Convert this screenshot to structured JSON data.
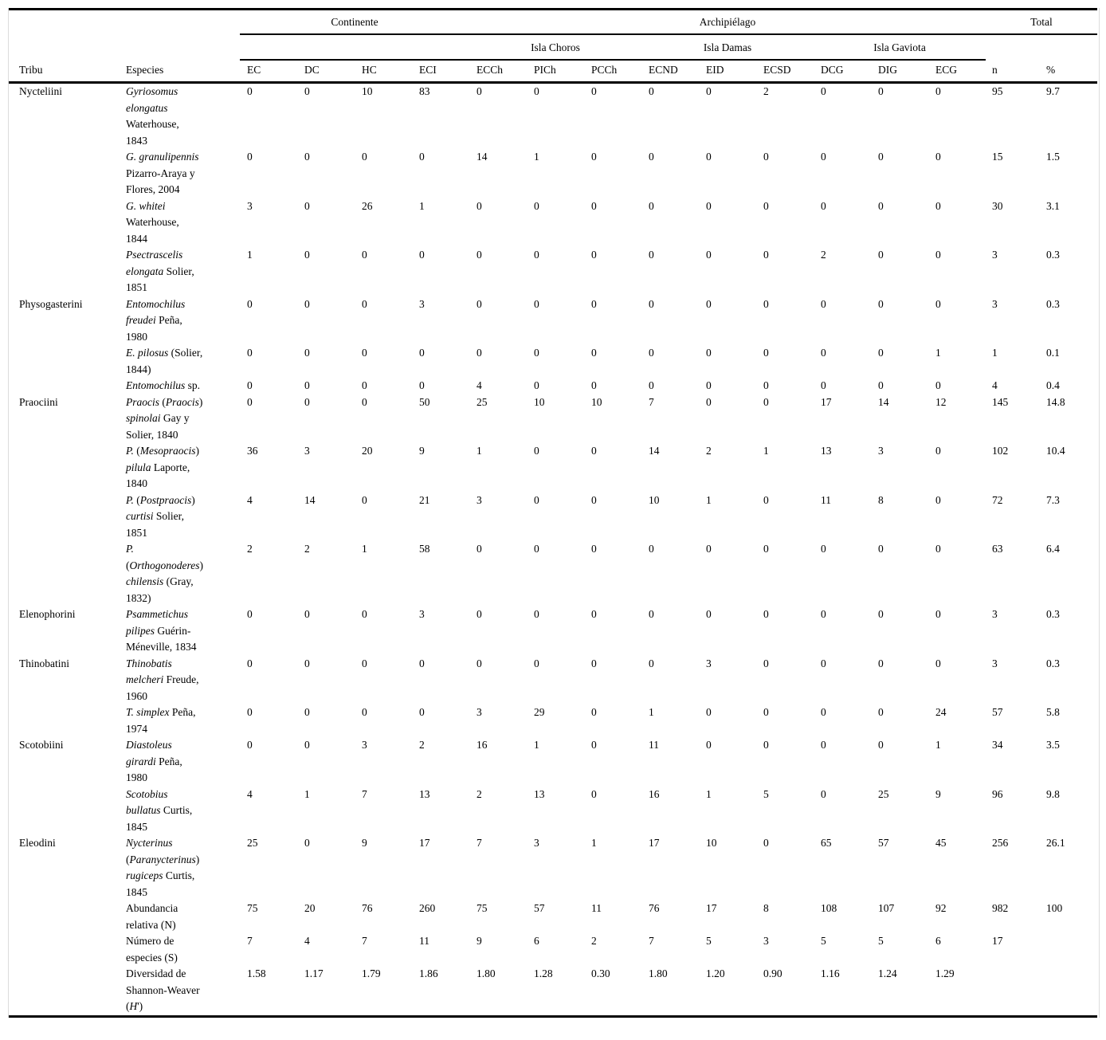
{
  "table": {
    "groups": {
      "continente": "Continente",
      "archipielago": "Archipiélago",
      "total": "Total"
    },
    "islands": [
      "Isla Choros",
      "Isla Damas",
      "Isla Gaviota"
    ],
    "col_headers": {
      "tribu": "Tribu",
      "especies": "Especies",
      "codes": [
        "EC",
        "DC",
        "HC",
        "ECI",
        "ECCh",
        "PICh",
        "PCCh",
        "ECND",
        "EID",
        "ECSD",
        "DCG",
        "DIG",
        "ECG",
        "n",
        "%"
      ]
    },
    "rows": [
      {
        "tribu": "Nycteliini",
        "species_lines": [
          [
            [
              "Gyriosomus",
              1
            ]
          ],
          [
            [
              "elongatus",
              1
            ]
          ],
          [
            [
              "Waterhouse,",
              0
            ]
          ],
          [
            [
              "1843",
              0
            ]
          ]
        ],
        "values": [
          "0",
          "0",
          "10",
          "83",
          "0",
          "0",
          "0",
          "0",
          "0",
          "2",
          "0",
          "0",
          "0",
          "95",
          "9.7"
        ]
      },
      {
        "tribu": "",
        "species_lines": [
          [
            [
              "G. granulipennis",
              1
            ]
          ],
          [
            [
              "Pizarro-Araya y",
              0
            ]
          ],
          [
            [
              "Flores, 2004",
              0
            ]
          ]
        ],
        "values": [
          "0",
          "0",
          "0",
          "0",
          "14",
          "1",
          "0",
          "0",
          "0",
          "0",
          "0",
          "0",
          "0",
          "15",
          "1.5"
        ]
      },
      {
        "tribu": "",
        "species_lines": [
          [
            [
              "G. whitei",
              1
            ]
          ],
          [
            [
              "Waterhouse,",
              0
            ]
          ],
          [
            [
              "1844",
              0
            ]
          ]
        ],
        "values": [
          "3",
          "0",
          "26",
          "1",
          "0",
          "0",
          "0",
          "0",
          "0",
          "0",
          "0",
          "0",
          "0",
          "30",
          "3.1"
        ]
      },
      {
        "tribu": "",
        "species_lines": [
          [
            [
              "Psectrascelis",
              1
            ]
          ],
          [
            [
              "elongata",
              1
            ],
            [
              " Solier,",
              0
            ]
          ],
          [
            [
              "1851",
              0
            ]
          ]
        ],
        "values": [
          "1",
          "0",
          "0",
          "0",
          "0",
          "0",
          "0",
          "0",
          "0",
          "0",
          "2",
          "0",
          "0",
          "3",
          "0.3"
        ]
      },
      {
        "tribu": "Physogasterini",
        "species_lines": [
          [
            [
              "Entomochilus",
              1
            ]
          ],
          [
            [
              "freudei",
              1
            ],
            [
              " Peña,",
              0
            ]
          ],
          [
            [
              "1980",
              0
            ]
          ]
        ],
        "values": [
          "0",
          "0",
          "0",
          "3",
          "0",
          "0",
          "0",
          "0",
          "0",
          "0",
          "0",
          "0",
          "0",
          "3",
          "0.3"
        ]
      },
      {
        "tribu": "",
        "species_lines": [
          [
            [
              "E. pilosus",
              1
            ],
            [
              " (Solier,",
              0
            ]
          ],
          [
            [
              "1844)",
              0
            ]
          ]
        ],
        "values": [
          "0",
          "0",
          "0",
          "0",
          "0",
          "0",
          "0",
          "0",
          "0",
          "0",
          "0",
          "0",
          "1",
          "1",
          "0.1"
        ]
      },
      {
        "tribu": "",
        "species_lines": [
          [
            [
              "Entomochilus",
              1
            ],
            [
              " sp.",
              0
            ]
          ]
        ],
        "values": [
          "0",
          "0",
          "0",
          "0",
          "4",
          "0",
          "0",
          "0",
          "0",
          "0",
          "0",
          "0",
          "0",
          "4",
          "0.4"
        ]
      },
      {
        "tribu": "Praociini",
        "species_lines": [
          [
            [
              "Praocis",
              1
            ],
            [
              " (",
              0
            ],
            [
              "Praocis",
              1
            ],
            [
              ")",
              0
            ]
          ],
          [
            [
              "spinolai",
              1
            ],
            [
              " Gay y",
              0
            ]
          ],
          [
            [
              "Solier, 1840",
              0
            ]
          ]
        ],
        "values": [
          "0",
          "0",
          "0",
          "50",
          "25",
          "10",
          "10",
          "7",
          "0",
          "0",
          "17",
          "14",
          "12",
          "145",
          "14.8"
        ]
      },
      {
        "tribu": "",
        "species_lines": [
          [
            [
              "P.",
              1
            ],
            [
              " (",
              0
            ],
            [
              "Mesopraocis",
              1
            ],
            [
              ")",
              0
            ]
          ],
          [
            [
              "pilula",
              1
            ],
            [
              " Laporte,",
              0
            ]
          ],
          [
            [
              "1840",
              0
            ]
          ]
        ],
        "values": [
          "36",
          "3",
          "20",
          "9",
          "1",
          "0",
          "0",
          "14",
          "2",
          "1",
          "13",
          "3",
          "0",
          "102",
          "10.4"
        ]
      },
      {
        "tribu": "",
        "species_lines": [
          [
            [
              "P.",
              1
            ],
            [
              " (",
              0
            ],
            [
              "Postpraocis",
              1
            ],
            [
              ")",
              0
            ]
          ],
          [
            [
              "curtisi",
              1
            ],
            [
              " Solier,",
              0
            ]
          ],
          [
            [
              "1851",
              0
            ]
          ]
        ],
        "values": [
          "4",
          "14",
          "0",
          "21",
          "3",
          "0",
          "0",
          "10",
          "1",
          "0",
          "11",
          "8",
          "0",
          "72",
          "7.3"
        ]
      },
      {
        "tribu": "",
        "species_lines": [
          [
            [
              "P.",
              1
            ]
          ],
          [
            [
              "(",
              0
            ],
            [
              "Orthogonoderes",
              1
            ],
            [
              ")",
              0
            ]
          ],
          [
            [
              "chilensis",
              1
            ],
            [
              " (Gray,",
              0
            ]
          ],
          [
            [
              "1832)",
              0
            ]
          ]
        ],
        "values": [
          "2",
          "2",
          "1",
          "58",
          "0",
          "0",
          "0",
          "0",
          "0",
          "0",
          "0",
          "0",
          "0",
          "63",
          "6.4"
        ]
      },
      {
        "tribu": "Elenophorini",
        "species_lines": [
          [
            [
              "Psammetichus",
              1
            ]
          ],
          [
            [
              "pilipes",
              1
            ],
            [
              " Guérin-",
              0
            ]
          ],
          [
            [
              "Méneville, 1834",
              0
            ]
          ]
        ],
        "values": [
          "0",
          "0",
          "0",
          "3",
          "0",
          "0",
          "0",
          "0",
          "0",
          "0",
          "0",
          "0",
          "0",
          "3",
          "0.3"
        ]
      },
      {
        "tribu": "Thinobatini",
        "species_lines": [
          [
            [
              "Thinobatis",
              1
            ]
          ],
          [
            [
              "melcheri",
              1
            ],
            [
              " Freude,",
              0
            ]
          ],
          [
            [
              "1960",
              0
            ]
          ]
        ],
        "values": [
          "0",
          "0",
          "0",
          "0",
          "0",
          "0",
          "0",
          "0",
          "3",
          "0",
          "0",
          "0",
          "0",
          "3",
          "0.3"
        ]
      },
      {
        "tribu": "",
        "species_lines": [
          [
            [
              "T. simplex",
              1
            ],
            [
              " Peña,",
              0
            ]
          ],
          [
            [
              "1974",
              0
            ]
          ]
        ],
        "values": [
          "0",
          "0",
          "0",
          "0",
          "3",
          "29",
          "0",
          "1",
          "0",
          "0",
          "0",
          "0",
          "24",
          "57",
          "5.8"
        ]
      },
      {
        "tribu": "Scotobiini",
        "species_lines": [
          [
            [
              "Diastoleus",
              1
            ]
          ],
          [
            [
              "girardi",
              1
            ],
            [
              " Peña,",
              0
            ]
          ],
          [
            [
              "1980",
              0
            ]
          ]
        ],
        "values": [
          "0",
          "0",
          "3",
          "2",
          "16",
          "1",
          "0",
          "11",
          "0",
          "0",
          "0",
          "0",
          "1",
          "34",
          "3.5"
        ]
      },
      {
        "tribu": "",
        "species_lines": [
          [
            [
              "Scotobius",
              1
            ]
          ],
          [
            [
              "bullatus",
              1
            ],
            [
              " Curtis,",
              0
            ]
          ],
          [
            [
              "1845",
              0
            ]
          ]
        ],
        "values": [
          "4",
          "1",
          "7",
          "13",
          "2",
          "13",
          "0",
          "16",
          "1",
          "5",
          "0",
          "25",
          "9",
          "96",
          "9.8"
        ]
      },
      {
        "tribu": "Eleodini",
        "species_lines": [
          [
            [
              "Nycterinus",
              1
            ]
          ],
          [
            [
              "(",
              0
            ],
            [
              "Paranycterinus",
              1
            ],
            [
              ")",
              0
            ]
          ],
          [
            [
              "rugiceps",
              1
            ],
            [
              " Curtis,",
              0
            ]
          ],
          [
            [
              "1845",
              0
            ]
          ]
        ],
        "values": [
          "25",
          "0",
          "9",
          "17",
          "7",
          "3",
          "1",
          "17",
          "10",
          "0",
          "65",
          "57",
          "45",
          "256",
          "26.1"
        ]
      },
      {
        "tribu": "",
        "species_lines": [
          [
            [
              "Abundancia",
              0
            ]
          ],
          [
            [
              "relativa (N)",
              0
            ]
          ]
        ],
        "values": [
          "75",
          "20",
          "76",
          "260",
          "75",
          "57",
          "11",
          "76",
          "17",
          "8",
          "108",
          "107",
          "92",
          "982",
          "100"
        ]
      },
      {
        "tribu": "",
        "species_lines": [
          [
            [
              "Número de",
              0
            ]
          ],
          [
            [
              "especies (S)",
              0
            ]
          ]
        ],
        "values": [
          "7",
          "4",
          "7",
          "11",
          "9",
          "6",
          "2",
          "7",
          "5",
          "3",
          "5",
          "5",
          "6",
          "17",
          ""
        ]
      },
      {
        "tribu": "",
        "species_lines": [
          [
            [
              "Diversidad de",
              0
            ]
          ],
          [
            [
              "Shannon-Weaver",
              0
            ]
          ],
          [
            [
              "(",
              0
            ],
            [
              "H",
              1
            ],
            [
              "')",
              0
            ]
          ]
        ],
        "values": [
          "1.58",
          "1.17",
          "1.79",
          "1.86",
          "1.80",
          "1.28",
          "0.30",
          "1.80",
          "1.20",
          "0.90",
          "1.16",
          "1.24",
          "1.29",
          "",
          ""
        ]
      }
    ]
  }
}
